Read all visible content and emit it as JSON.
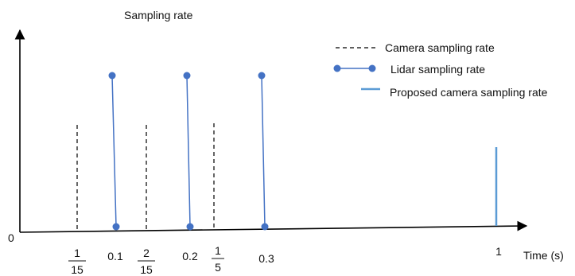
{
  "title": "Sampling rate",
  "x_axis_label": "Time (s)",
  "origin_label": "0",
  "legend": {
    "camera": "Camera sampling rate",
    "lidar": "Lidar sampling rate",
    "proposed": "Proposed camera sampling rate"
  },
  "tick_labels": {
    "t1_15": {
      "num": "1",
      "den": "15"
    },
    "t0_1": "0.1",
    "t2_15": {
      "num": "2",
      "den": "15"
    },
    "t0_2": "0.2",
    "t1_5": {
      "num": "1",
      "den": "5"
    },
    "t0_3": "0.3",
    "t1": "1"
  },
  "colors": {
    "axis": "#000000",
    "camera": "#000000",
    "lidar": "#4472C4",
    "proposed": "#5B9BD5"
  }
}
